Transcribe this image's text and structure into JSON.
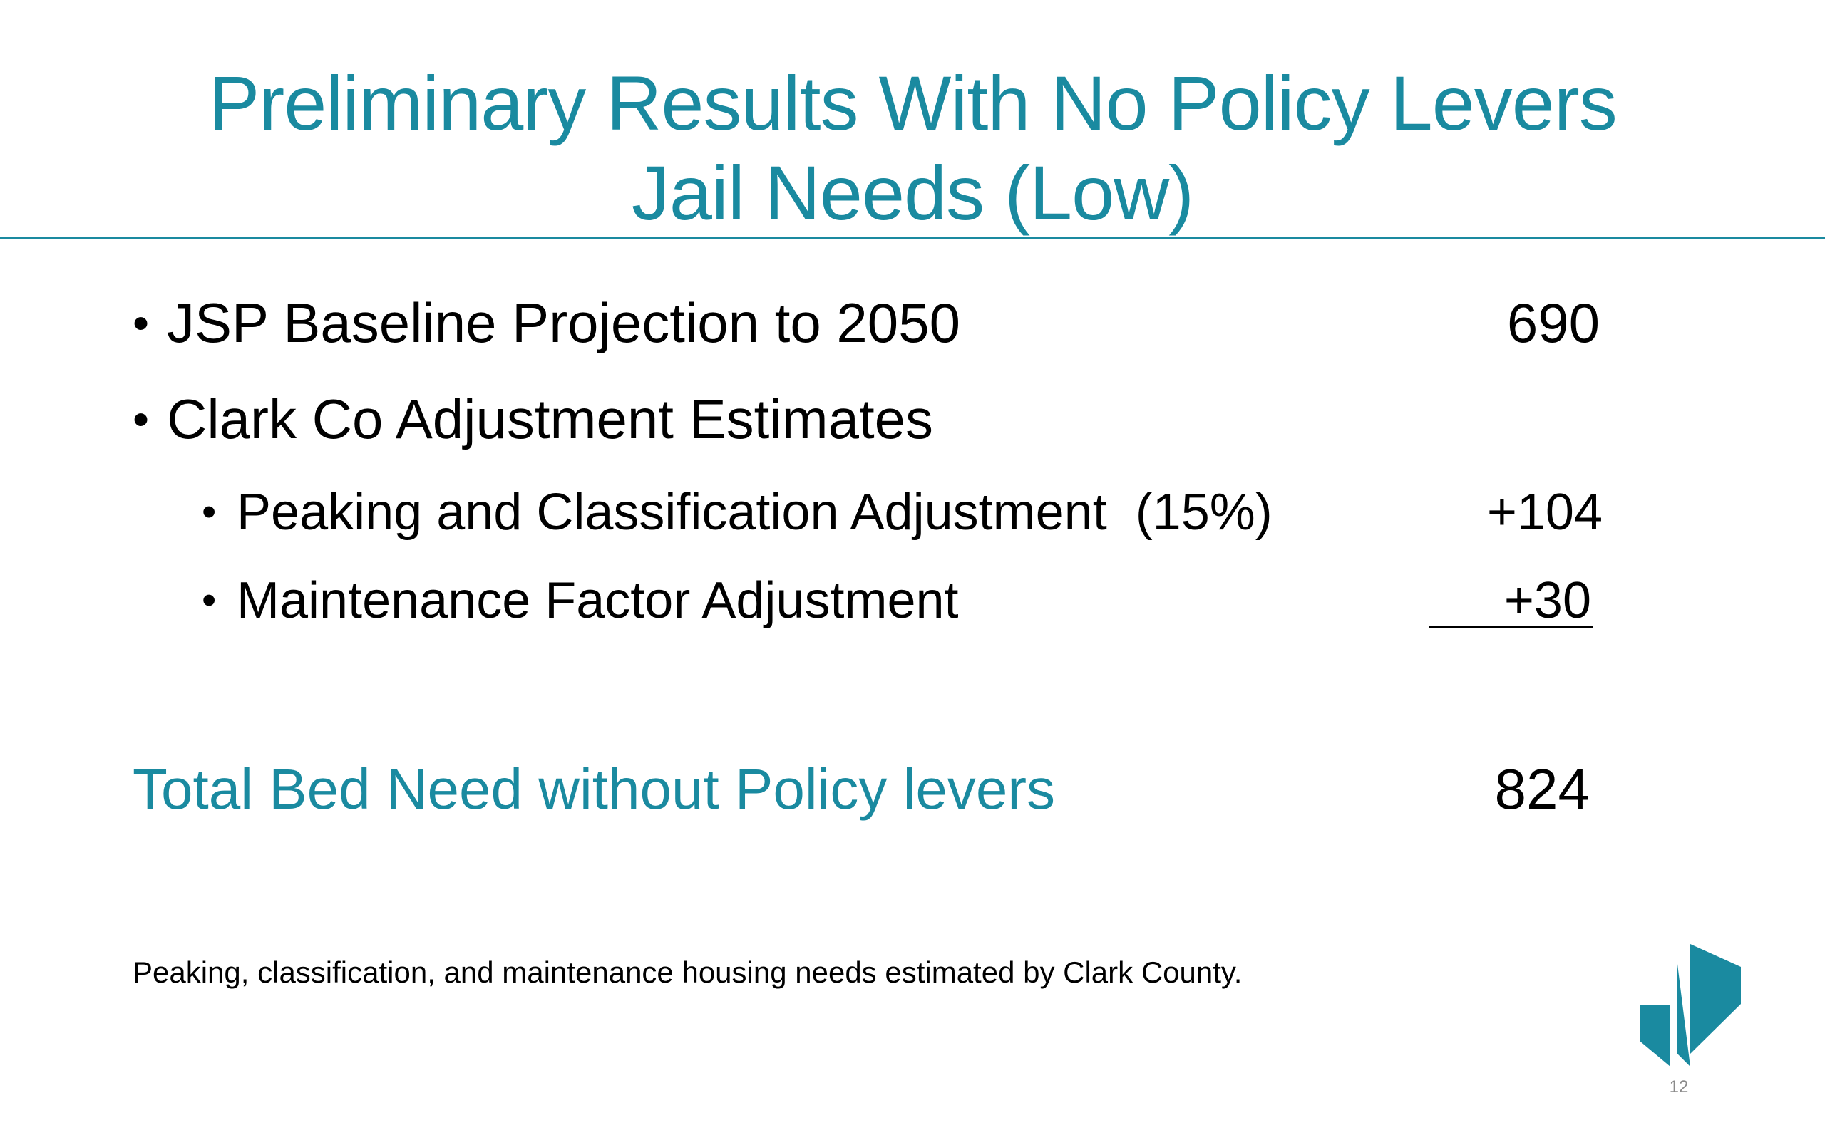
{
  "slide": {
    "title_line1": "Preliminary Results With No Policy Levers",
    "title_line2": "Jail Needs (Low)",
    "bullet_glyph": "•",
    "items": [
      {
        "label": "JSP Baseline Projection to 2050",
        "value": "690"
      },
      {
        "label": "Clark Co Adjustment Estimates",
        "value": ""
      },
      {
        "label": "Peaking and Classification Adjustment  (15%)",
        "value": "+104"
      },
      {
        "label": "Maintenance Factor Adjustment",
        "value": "+30"
      }
    ],
    "total_label": "Total Bed Need without Policy levers",
    "total_value": "824",
    "footnote": "Peaking, classification, and maintenance housing needs estimated by Clark County.",
    "page_number": "12"
  },
  "colors": {
    "accent": "#1a8aa0",
    "text": "#000000",
    "page_number": "#8a8a8a"
  },
  "icons": {
    "logo": "clark-county-logo-icon"
  }
}
